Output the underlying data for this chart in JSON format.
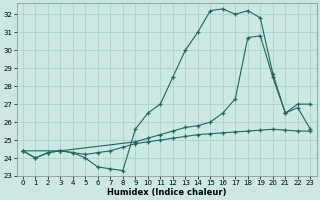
{
  "xlabel": "Humidex (Indice chaleur)",
  "bg_color": "#cce8e4",
  "grid_color": "#aaccc8",
  "line_color": "#1a6b5a",
  "xlim": [
    -0.5,
    23.5
  ],
  "ylim": [
    23,
    32.6
  ],
  "yticks": [
    23,
    24,
    25,
    26,
    27,
    28,
    29,
    30,
    31,
    32
  ],
  "xticks": [
    0,
    1,
    2,
    3,
    4,
    5,
    6,
    7,
    8,
    9,
    10,
    11,
    12,
    13,
    14,
    15,
    16,
    17,
    18,
    19,
    20,
    21,
    22,
    23
  ],
  "line1_x": [
    0,
    1,
    2,
    3,
    4,
    5,
    6,
    7,
    8,
    9,
    10,
    11,
    12,
    13,
    14,
    15,
    16,
    17,
    18,
    19,
    20,
    21,
    22,
    23
  ],
  "line1_y": [
    24.4,
    24.0,
    24.3,
    24.4,
    24.3,
    24.0,
    23.5,
    23.4,
    23.3,
    25.6,
    26.5,
    27.0,
    28.5,
    30.0,
    31.0,
    32.2,
    32.3,
    32.0,
    32.2,
    31.8,
    28.7,
    26.5,
    27.0,
    27.0
  ],
  "line2_x": [
    0,
    3,
    9,
    10,
    11,
    12,
    13,
    14,
    15,
    16,
    17,
    18,
    19,
    20,
    21,
    22,
    23
  ],
  "line2_y": [
    24.4,
    24.4,
    24.9,
    25.1,
    25.3,
    25.5,
    25.7,
    25.8,
    26.0,
    26.5,
    27.3,
    30.7,
    30.8,
    28.5,
    26.5,
    26.8,
    25.6
  ],
  "line3_x": [
    0,
    1,
    2,
    3,
    4,
    5,
    6,
    7,
    8,
    9,
    10,
    11,
    12,
    13,
    14,
    15,
    16,
    17,
    18,
    19,
    20,
    21,
    22,
    23
  ],
  "line3_y": [
    24.4,
    24.0,
    24.3,
    24.4,
    24.3,
    24.2,
    24.3,
    24.4,
    24.6,
    24.8,
    24.9,
    25.0,
    25.1,
    25.2,
    25.3,
    25.35,
    25.4,
    25.45,
    25.5,
    25.55,
    25.6,
    25.55,
    25.5,
    25.5
  ]
}
